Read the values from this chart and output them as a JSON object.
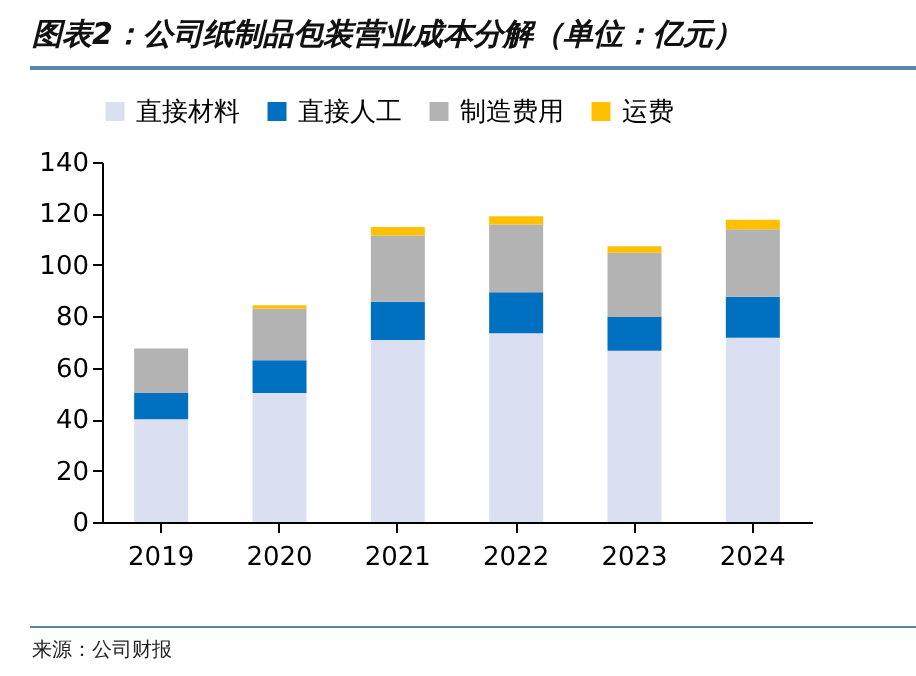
{
  "chart_data": {
    "type": "bar",
    "title": "图表2：公司纸制品包装营业成本分解（单位：亿元）",
    "annotations": [
      "来源：公司财报"
    ],
    "categories": [
      "2019",
      "2020",
      "2021",
      "2022",
      "2023",
      "2024"
    ],
    "stacked": true,
    "legend": "top",
    "ylim": [
      0,
      140
    ],
    "yticks": [
      0,
      20,
      40,
      60,
      80,
      100,
      120,
      140
    ],
    "series": [
      {
        "name": "直接材料",
        "color": "#dae0f2",
        "values": [
          40.0,
          50.2,
          70.8,
          73.4,
          66.6,
          71.7
        ]
      },
      {
        "name": "直接人工",
        "color": "#0070c0",
        "values": [
          10.2,
          12.7,
          14.9,
          15.9,
          13.1,
          15.9
        ]
      },
      {
        "name": "制造费用",
        "color": "#b3b3b3",
        "values": [
          17.3,
          20.0,
          25.7,
          26.4,
          25.0,
          26.2
        ]
      },
      {
        "name": "运费",
        "color": "#ffc000",
        "values": [
          0,
          1.4,
          3.3,
          3.2,
          2.5,
          3.7
        ]
      }
    ]
  }
}
